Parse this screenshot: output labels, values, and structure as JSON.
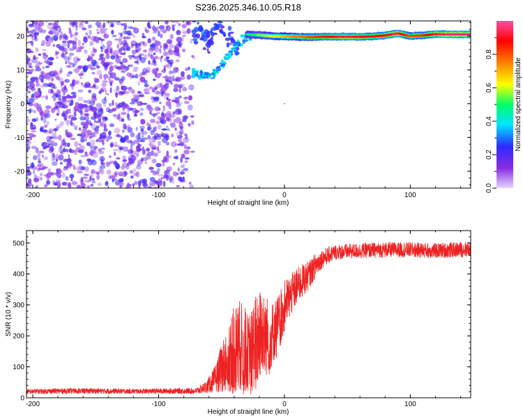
{
  "figure": {
    "title": "S236.2025.346.10.05.R18"
  },
  "chart_data": [
    {
      "type": "heatmap",
      "title": "S236.2025.346.10.05.R18",
      "xlabel": "Height of straight line (km)",
      "ylabel": "Frequency (Hz)",
      "xlim": [
        -205,
        148
      ],
      "ylim": [
        -25,
        24.5
      ],
      "xticks": [
        -200,
        -100,
        0,
        100
      ],
      "yticks": [
        -20,
        -10,
        0,
        10,
        20
      ],
      "colorbar": {
        "label": "Normalized spectral amplitude",
        "range": [
          0,
          1
        ],
        "ticks": [
          0.0,
          0.2,
          0.4,
          0.6,
          0.8
        ],
        "colors": [
          "#e6d6ff",
          "#8a2be2",
          "#2b2bff",
          "#00e6ff",
          "#00ff66",
          "#ffff00",
          "#ff8000",
          "#ff0000",
          "#ff4da6"
        ]
      },
      "features": {
        "noise_region_x": [
          -205,
          -70
        ],
        "noise_frequency_range": [
          -25,
          24.5
        ],
        "noise_amplitude_range": [
          0.05,
          0.25
        ],
        "curved_tail": {
          "x": [
            -73,
            -66,
            -60,
            -54,
            -48,
            -42,
            -36,
            -32,
            -28,
            -24
          ],
          "frequency": [
            9.5,
            8.5,
            8.2,
            9.5,
            12.5,
            15.5,
            17.5,
            19.0,
            19.8,
            20.2
          ],
          "amplitude": 0.35
        },
        "upper_branch": {
          "x": [
            -72,
            -66,
            -60,
            -56,
            -52,
            -48,
            -44,
            -40,
            -36
          ],
          "frequency": [
            22.5,
            20.5,
            18.5,
            21.0,
            23.5,
            22.0,
            20.0,
            17.5,
            16.0
          ],
          "amplitude": 0.25
        },
        "main_line": {
          "x": [
            -30,
            -20,
            -10,
            0,
            10,
            20,
            30,
            40,
            50,
            60,
            70,
            80,
            90,
            100,
            110,
            120,
            130,
            140,
            148
          ],
          "frequency": [
            20.5,
            20.3,
            20.0,
            19.9,
            19.8,
            19.7,
            19.8,
            19.8,
            19.8,
            19.8,
            19.9,
            20.2,
            20.8,
            20.0,
            20.2,
            20.6,
            20.5,
            20.5,
            20.5
          ],
          "amplitude": [
            0.45,
            0.55,
            0.6,
            0.7,
            0.75,
            0.8,
            0.85,
            0.9,
            0.92,
            0.9,
            0.85,
            0.88,
            0.93,
            0.8,
            0.82,
            0.92,
            0.95,
            0.95,
            0.95
          ]
        }
      }
    },
    {
      "type": "line",
      "xlabel": "Height of straight line (km)",
      "ylabel": "SNR (10 * v/v)",
      "xlim": [
        -205,
        148
      ],
      "ylim": [
        0,
        540
      ],
      "xticks": [
        -200,
        -100,
        0,
        100
      ],
      "yticks": [
        0,
        100,
        200,
        300,
        400,
        500
      ],
      "series": [
        {
          "name": "SNR",
          "color": "#ee2222",
          "envelope": {
            "x": [
              -205,
              -180,
              -150,
              -120,
              -90,
              -70,
              -62,
              -55,
              -48,
              -42,
              -36,
              -32,
              -28,
              -24,
              -20,
              -16,
              -12,
              -8,
              -4,
              0,
              5,
              10,
              15,
              20,
              25,
              30,
              40,
              60,
              80,
              100,
              120,
              148
            ],
            "mean": [
              20,
              22,
              22,
              21,
              22,
              22,
              35,
              60,
              110,
              150,
              170,
              160,
              140,
              180,
              200,
              230,
              190,
              220,
              250,
              300,
              330,
              360,
              380,
              400,
              430,
              450,
              470,
              475,
              478,
              478,
              475,
              480
            ],
            "spread": [
              8,
              9,
              9,
              8,
              9,
              10,
              20,
              45,
              90,
              130,
              150,
              140,
              120,
              150,
              150,
              140,
              110,
              100,
              90,
              80,
              70,
              60,
              55,
              45,
              40,
              30,
              25,
              25,
              25,
              25,
              25,
              25
            ]
          }
        }
      ]
    }
  ]
}
